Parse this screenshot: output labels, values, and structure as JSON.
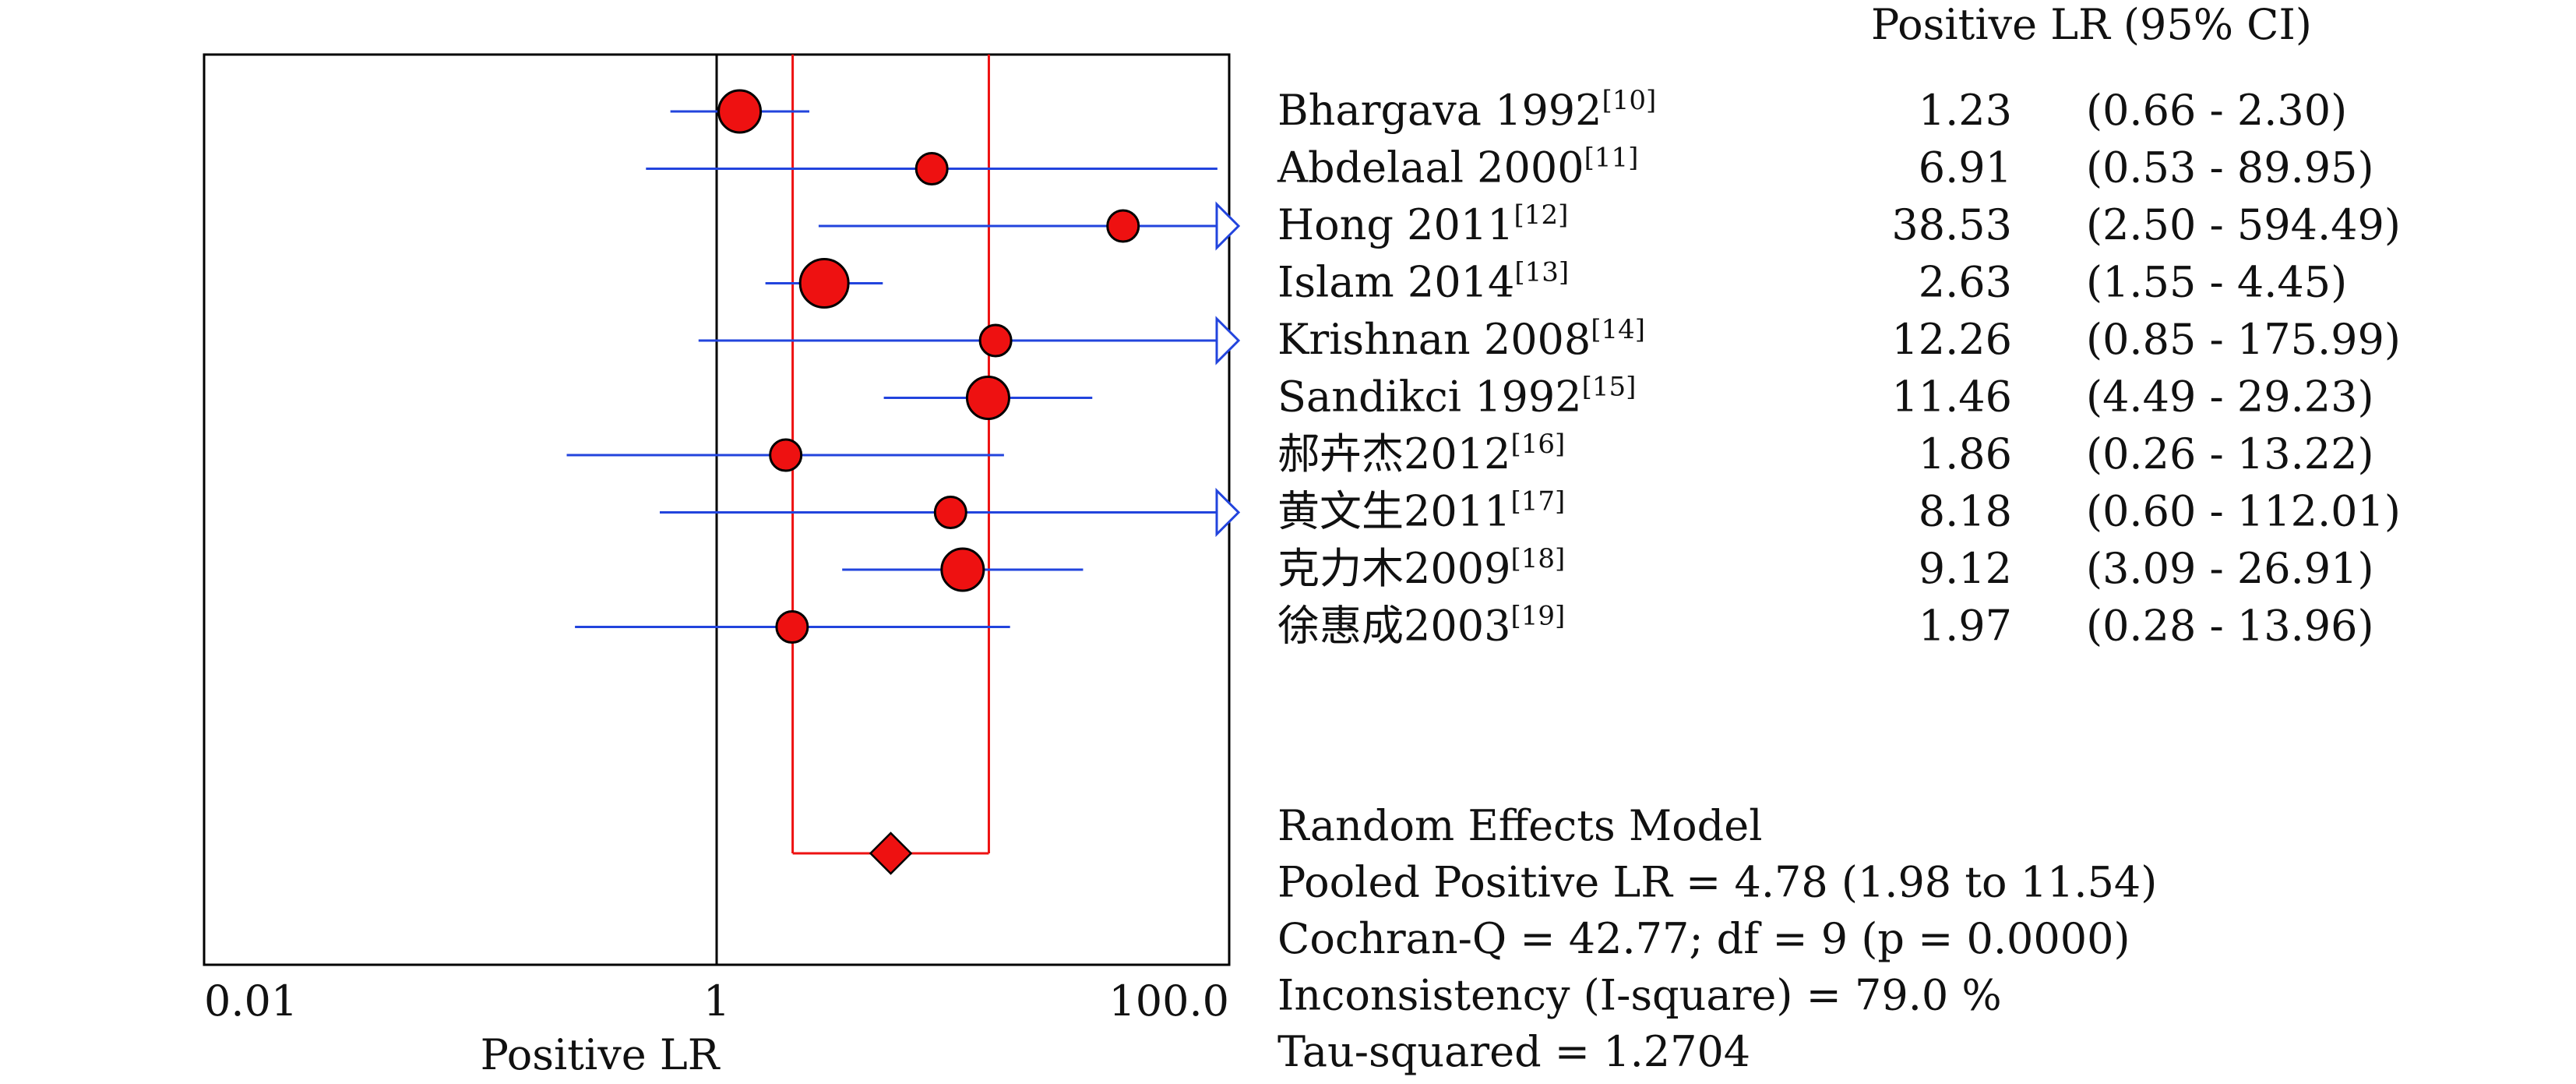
{
  "chart_data": {
    "type": "forest",
    "xlabel": "Positive LR",
    "xscale": "log",
    "xlim": [
      0.01,
      100.0
    ],
    "x_ticks": [
      "0.01",
      "1",
      "100.0"
    ],
    "x_tick_values": [
      0.01,
      1,
      100
    ],
    "reference_line": 1,
    "column_header": "Positive LR (95% CI)",
    "studies": [
      {
        "name": "Bhargava 1992",
        "ref": "[10]",
        "lr": 1.23,
        "lr_text": "1.23",
        "ci_text": "(0.66 - 2.30)",
        "lower": 0.66,
        "upper": 2.3,
        "marker_size": "medium"
      },
      {
        "name": "Abdelaal 2000",
        "ref": "[11]",
        "lr": 6.91,
        "lr_text": "6.91",
        "ci_text": "(0.53 - 89.95)",
        "lower": 0.53,
        "upper": 89.95,
        "marker_size": "small"
      },
      {
        "name": "Hong 2011",
        "ref": "[12]",
        "lr": 38.53,
        "lr_text": "38.53",
        "ci_text": "(2.50 - 594.49)",
        "lower": 2.5,
        "upper": 594.49,
        "marker_size": "small"
      },
      {
        "name": "Islam 2014",
        "ref": "[13]",
        "lr": 2.63,
        "lr_text": "2.63",
        "ci_text": "(1.55 - 4.45)",
        "lower": 1.55,
        "upper": 4.45,
        "marker_size": "large"
      },
      {
        "name": "Krishnan 2008",
        "ref": "[14]",
        "lr": 12.26,
        "lr_text": "12.26",
        "ci_text": "(0.85 - 175.99)",
        "lower": 0.85,
        "upper": 175.99,
        "marker_size": "small"
      },
      {
        "name": "Sandikci 1992",
        "ref": "[15]",
        "lr": 11.46,
        "lr_text": "11.46",
        "ci_text": "(4.49 - 29.23)",
        "lower": 4.49,
        "upper": 29.23,
        "marker_size": "medium"
      },
      {
        "name": "郝卉杰2012",
        "ref": "[16]",
        "lr": 1.86,
        "lr_text": "1.86",
        "ci_text": "(0.26 - 13.22)",
        "lower": 0.26,
        "upper": 13.22,
        "marker_size": "small"
      },
      {
        "name": "黄文生2011",
        "ref": "[17]",
        "lr": 8.18,
        "lr_text": "8.18",
        "ci_text": "(0.60 - 112.01)",
        "lower": 0.6,
        "upper": 112.01,
        "marker_size": "small"
      },
      {
        "name": "克力木2009",
        "ref": "[18]",
        "lr": 9.12,
        "lr_text": "9.12",
        "ci_text": "(3.09 - 26.91)",
        "lower": 3.09,
        "upper": 26.91,
        "marker_size": "medium"
      },
      {
        "name": "徐惠成2003",
        "ref": "[19]",
        "lr": 1.97,
        "lr_text": "1.97",
        "ci_text": "(0.28 - 13.96)",
        "lower": 0.28,
        "upper": 13.96,
        "marker_size": "small"
      }
    ],
    "pooled": {
      "lr": 4.78,
      "lower": 1.98,
      "upper": 11.54
    },
    "summary_lines": [
      "Random Effects Model",
      "Pooled Positive LR = 4.78 (1.98 to 11.54)",
      "Cochran-Q = 42.77; df =  9 (p = 0.0000)",
      "Inconsistency (I-square) = 79.0 %",
      "Tau-squared = 1.2704"
    ],
    "colors": {
      "ci_line": "#2244dd",
      "marker_fill": "#ee1111",
      "pooled_box": "#ee1111",
      "axis": "#000000"
    }
  }
}
